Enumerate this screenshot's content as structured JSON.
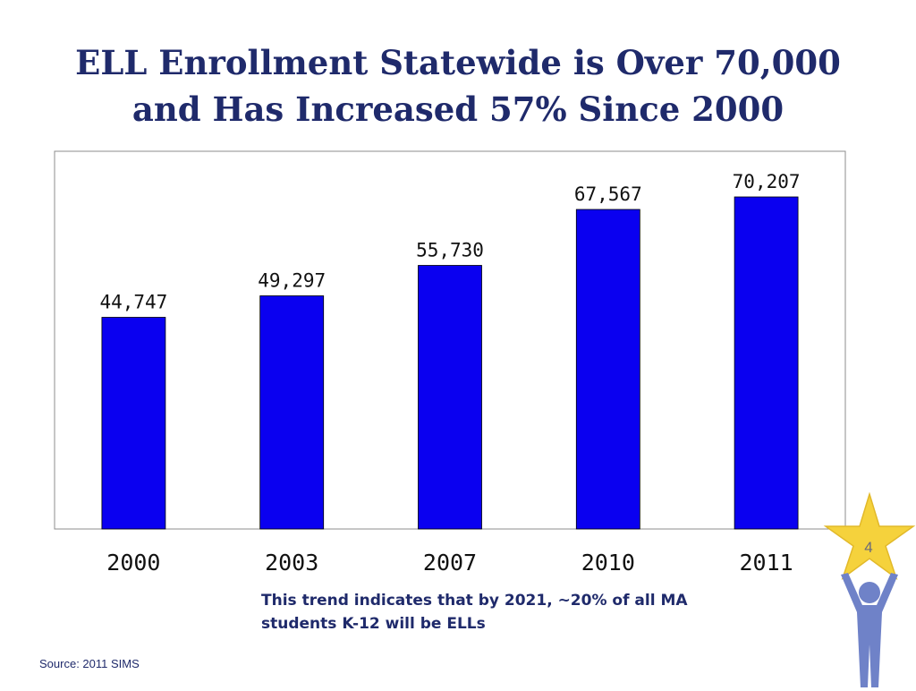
{
  "slide": {
    "title_line1": "ELL Enrollment Statewide is Over 70,000",
    "title_line2": "and Has Increased 57% Since 2000",
    "note_line1": "This trend indicates that by 2021, ~20% of all MA",
    "note_line2": "students K-12 will be ELLs",
    "source": "Source: 2011  SIMS",
    "page_number": "4"
  },
  "colors": {
    "bar": "#0a00f0",
    "title": "#1f2a6b",
    "star": "#f5d23c",
    "figure": "#6f82c8"
  },
  "icons": {
    "badge": "star-person-icon"
  },
  "chart_data": {
    "type": "bar",
    "categories": [
      "2000",
      "2003",
      "2007",
      "2010",
      "2011"
    ],
    "values": [
      44747,
      49297,
      55730,
      67567,
      70207
    ],
    "data_labels": [
      "44,747",
      "49,297",
      "55,730",
      "67,567",
      "70,207"
    ],
    "title": "",
    "xlabel": "",
    "ylabel": "",
    "ylim": [
      0,
      75000
    ],
    "grid": false,
    "legend": "none"
  }
}
